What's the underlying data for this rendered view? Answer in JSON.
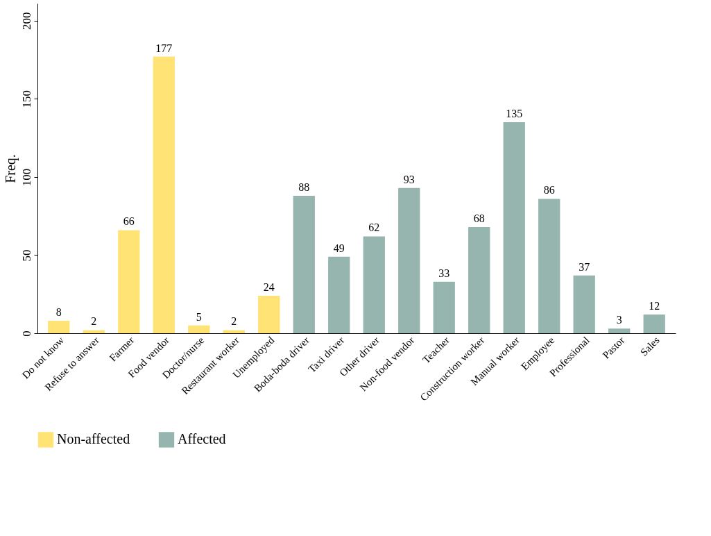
{
  "chart_data": {
    "type": "bar",
    "ylabel": "Freq.",
    "categories": [
      "Do not know",
      "Refuse to answer",
      "Farmer",
      "Food vendor",
      "Doctor/nurse",
      "Restaurant worker",
      "Unemployed",
      "Boda-boda driver",
      "Taxi driver",
      "Other driver",
      "Non-food vendor",
      "Teacher",
      "Construction worker",
      "Manual worker",
      "Employee",
      "Professional",
      "Pastor",
      "Sales"
    ],
    "series": [
      {
        "name": "Non-affected",
        "color": "#ffe374",
        "values": [
          8,
          2,
          66,
          177,
          5,
          2,
          24,
          null,
          null,
          null,
          null,
          null,
          null,
          null,
          null,
          null,
          null,
          null
        ]
      },
      {
        "name": "Affected",
        "color": "#97b5af",
        "values": [
          null,
          null,
          null,
          null,
          null,
          null,
          null,
          88,
          49,
          62,
          93,
          33,
          68,
          135,
          86,
          37,
          3,
          12
        ]
      }
    ],
    "ylim": [
      0,
      211
    ],
    "yticks": [
      0,
      50,
      100,
      150,
      200
    ],
    "grid": false,
    "legend": "bottom",
    "data_labels": true
  }
}
